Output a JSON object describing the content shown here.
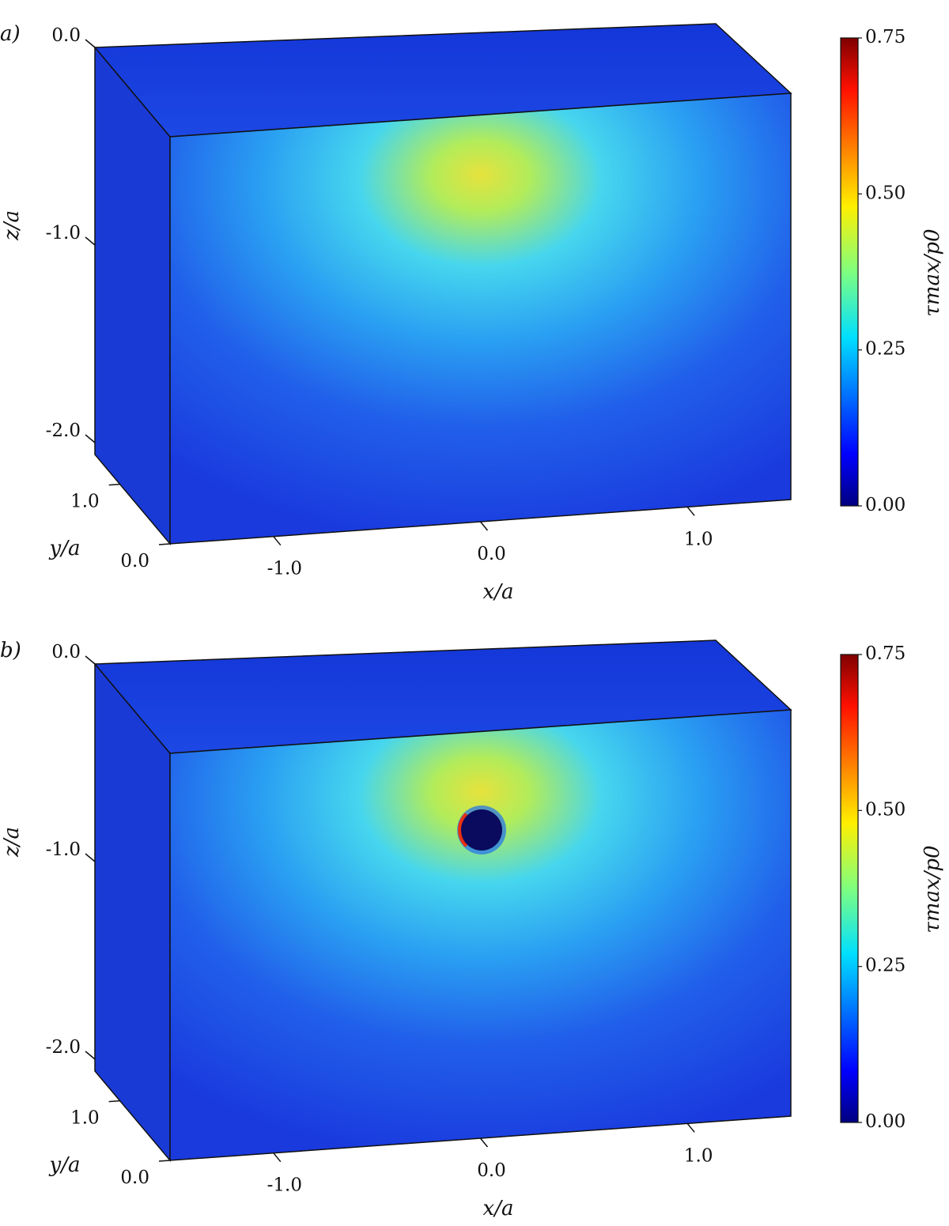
{
  "chart_data": [
    {
      "type": "volume",
      "panel_label": "a)",
      "xlabel": "x/a",
      "ylabel": "y/a",
      "zlabel": "z/a",
      "colorbar_label": "τmax/p0",
      "xlim": [
        -1.5,
        1.5
      ],
      "xticks": [
        {
          "value": -1,
          "label": "-1.0"
        },
        {
          "value": 0,
          "label": "0.0"
        },
        {
          "value": 1,
          "label": "1.0"
        }
      ],
      "ylim": [
        0,
        1.5
      ],
      "yticks": [
        {
          "value": 0,
          "label": "0.0"
        },
        {
          "value": 1,
          "label": "1.0"
        }
      ],
      "zlim": [
        -2.06,
        0
      ],
      "zticks": [
        {
          "value": 0,
          "label": "0.0"
        },
        {
          "value": -1,
          "label": "-1.0"
        },
        {
          "value": -2,
          "label": "-2.0"
        }
      ],
      "clim": [
        0,
        0.75
      ],
      "cticks": [
        {
          "value": 0,
          "label": "0.00"
        },
        0.25,
        {
          "value": 0.5,
          "label": "0.50"
        },
        0.75
      ],
      "colormap": "jet",
      "inclusion": false
    },
    {
      "type": "volume",
      "panel_label": "b)",
      "xlabel": "x/a",
      "ylabel": "y/a",
      "zlabel": "z/a",
      "colorbar_label": "τmax/p0",
      "xlim": [
        -1.5,
        1.5
      ],
      "xticks": [
        {
          "value": -1,
          "label": "-1.0"
        },
        {
          "value": 0,
          "label": "0.0"
        },
        {
          "value": 1,
          "label": "1.0"
        }
      ],
      "ylim": [
        0,
        1.5
      ],
      "yticks": [
        {
          "value": 0,
          "label": "0.0"
        },
        {
          "value": 1,
          "label": "1.0"
        }
      ],
      "zlim": [
        -2.06,
        0
      ],
      "zticks": [
        {
          "value": 0,
          "label": "0.0"
        },
        {
          "value": -1,
          "label": "-1.0"
        },
        {
          "value": -2,
          "label": "-2.0"
        }
      ],
      "clim": [
        0,
        0.75
      ],
      "cticks": [
        {
          "value": 0,
          "label": "0.00"
        },
        0.25,
        {
          "value": 0.5,
          "label": "0.50"
        },
        0.75
      ],
      "colormap": "jet",
      "inclusion": true
    }
  ]
}
